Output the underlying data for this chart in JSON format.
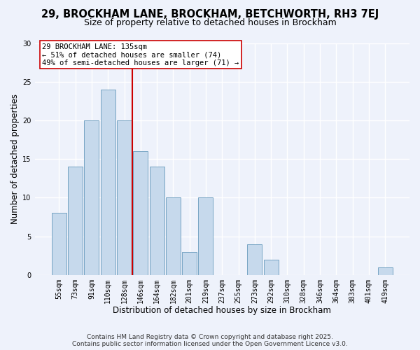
{
  "title": "29, BROCKHAM LANE, BROCKHAM, BETCHWORTH, RH3 7EJ",
  "subtitle": "Size of property relative to detached houses in Brockham",
  "xlabel": "Distribution of detached houses by size in Brockham",
  "ylabel": "Number of detached properties",
  "bar_labels": [
    "55sqm",
    "73sqm",
    "91sqm",
    "110sqm",
    "128sqm",
    "146sqm",
    "164sqm",
    "182sqm",
    "201sqm",
    "219sqm",
    "237sqm",
    "255sqm",
    "273sqm",
    "292sqm",
    "310sqm",
    "328sqm",
    "346sqm",
    "364sqm",
    "383sqm",
    "401sqm",
    "419sqm"
  ],
  "bar_values": [
    8,
    14,
    20,
    24,
    20,
    16,
    14,
    10,
    3,
    10,
    0,
    0,
    4,
    2,
    0,
    0,
    0,
    0,
    0,
    0,
    1
  ],
  "bar_color": "#c6d9ec",
  "bar_edge_color": "#6699bb",
  "vline_x_idx": 4.5,
  "vline_color": "#cc0000",
  "ylim": [
    0,
    30
  ],
  "yticks": [
    0,
    5,
    10,
    15,
    20,
    25,
    30
  ],
  "annotation_title": "29 BROCKHAM LANE: 135sqm",
  "annotation_line1": "← 51% of detached houses are smaller (74)",
  "annotation_line2": "49% of semi-detached houses are larger (71) →",
  "annotation_box_color": "#ffffff",
  "annotation_box_edge": "#cc0000",
  "footer1": "Contains HM Land Registry data © Crown copyright and database right 2025.",
  "footer2": "Contains public sector information licensed under the Open Government Licence v3.0.",
  "bg_color": "#eef2fb",
  "grid_color": "#ffffff",
  "title_fontsize": 10.5,
  "subtitle_fontsize": 9,
  "axis_label_fontsize": 8.5,
  "tick_fontsize": 7,
  "annotation_fontsize": 7.5,
  "footer_fontsize": 6.5
}
